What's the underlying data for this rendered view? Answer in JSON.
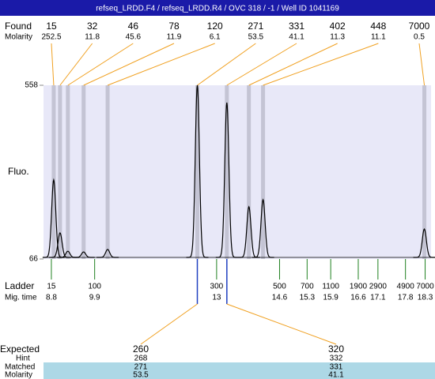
{
  "header": {
    "title": "refseq_LRDD.F4 / refseq_LRDD.R4 / OVC 318 / -1 / Well ID 1041169"
  },
  "chart_data": {
    "type": "electropherogram",
    "y_label": "Fluo.",
    "ylim": [
      66,
      558
    ],
    "yticks": [
      66,
      558
    ],
    "xlim": [
      8.6,
      18.45
    ],
    "found": {
      "label": "Found",
      "molarity_label": "Molarity",
      "peaks": [
        {
          "size": 15,
          "molarity": 252.5,
          "time": 8.86,
          "fluorescence": 290
        },
        {
          "size": 32,
          "molarity": 11.8,
          "time": 9.02,
          "fluorescence": 140
        },
        {
          "size": 46,
          "molarity": 45.6,
          "time": 9.22,
          "fluorescence": 88
        },
        {
          "size": 78,
          "molarity": 11.9,
          "time": 9.62,
          "fluorescence": 86
        },
        {
          "size": 120,
          "molarity": 6.1,
          "time": 10.23,
          "fluorescence": 93
        },
        {
          "size": 271,
          "molarity": 53.5,
          "time": 12.51,
          "fluorescence": 558
        },
        {
          "size": 331,
          "molarity": 41.1,
          "time": 13.26,
          "fluorescence": 509
        },
        {
          "size": 402,
          "molarity": 11.3,
          "time": 13.82,
          "fluorescence": 214
        },
        {
          "size": 448,
          "molarity": 11.1,
          "time": 14.18,
          "fluorescence": 234
        },
        {
          "size": 7000,
          "molarity": 0.5,
          "time": 18.28,
          "fluorescence": 151
        }
      ]
    },
    "ladder": {
      "label": "Ladder",
      "time_label": "Mig. time",
      "sizes": [
        15,
        100,
        300,
        500,
        700,
        1100,
        1900,
        2900,
        4900,
        7000
      ],
      "times": [
        8.8,
        9.9,
        13,
        14.6,
        15.3,
        15.9,
        16.6,
        17.1,
        17.8,
        18.3
      ]
    },
    "expected": {
      "label": "Expected",
      "hint_label": "Hint",
      "matched_label": "Matched",
      "molarity_label": "Molarity",
      "columns": [
        {
          "expected": 260,
          "hint": 268,
          "matched": 271,
          "molarity": 53.5,
          "time": 12.51
        },
        {
          "expected": 320,
          "hint": 332,
          "matched": 331,
          "molarity": 41.1,
          "time": 13.26
        }
      ]
    }
  }
}
